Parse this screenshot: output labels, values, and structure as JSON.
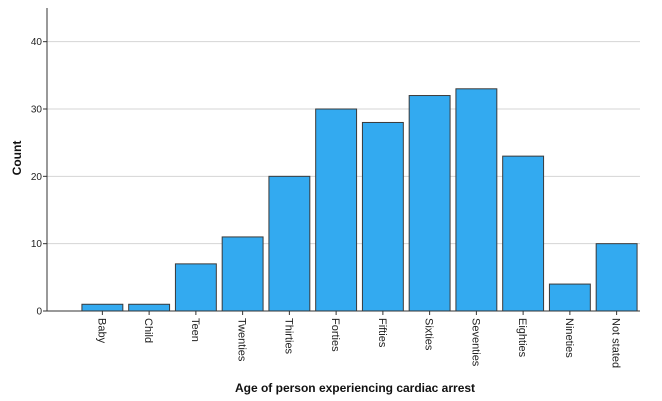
{
  "chart_data": {
    "type": "bar",
    "title": "",
    "xlabel": "Age of person experiencing cardiac arrest",
    "ylabel": "Count",
    "categories": [
      "Baby",
      "Child",
      "Teen",
      "Twenties",
      "Thirties",
      "Forties",
      "Fifties",
      "Sixties",
      "Seventies",
      "Eighties",
      "Nineties",
      "Not stated"
    ],
    "values": [
      1,
      1,
      7,
      11,
      20,
      30,
      28,
      32,
      33,
      23,
      4,
      10
    ],
    "ylim": [
      0,
      45
    ],
    "yticks": [
      0,
      10,
      20,
      30,
      40
    ],
    "grid": true,
    "bar_color": "#33aaf0",
    "bar_edge_color": "#3a3a3a",
    "grid_color": "#d4d4d4"
  }
}
